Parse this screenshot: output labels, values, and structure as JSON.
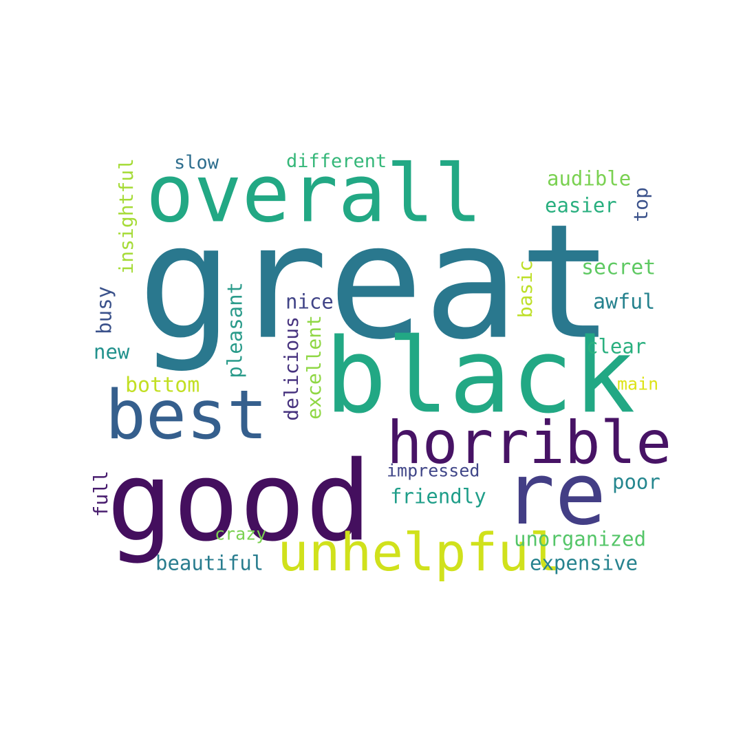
{
  "words": [
    {
      "text": "great",
      "color": "#2a788e"
    },
    {
      "text": "overall",
      "color": "#22a884"
    },
    {
      "text": "black",
      "color": "#22a884"
    },
    {
      "text": "good",
      "color": "#440f5e"
    },
    {
      "text": "best",
      "color": "#355f8d"
    },
    {
      "text": "horrible",
      "color": "#471365"
    },
    {
      "text": "re",
      "color": "#433e85"
    },
    {
      "text": "unhelpful",
      "color": "#d0e11c"
    },
    {
      "text": "slow",
      "color": "#2e6e8e"
    },
    {
      "text": "different",
      "color": "#35b779"
    },
    {
      "text": "audible",
      "color": "#7ad151"
    },
    {
      "text": "easier",
      "color": "#29af7f"
    },
    {
      "text": "top",
      "color": "#3b528b"
    },
    {
      "text": "insightful",
      "color": "#a5db36"
    },
    {
      "text": "busy",
      "color": "#3b528b"
    },
    {
      "text": "new",
      "color": "#21918c"
    },
    {
      "text": "pleasant",
      "color": "#2a9b8a"
    },
    {
      "text": "nice",
      "color": "#414487"
    },
    {
      "text": "delicious",
      "color": "#46327e"
    },
    {
      "text": "excellent",
      "color": "#8fd744"
    },
    {
      "text": "basic",
      "color": "#bddf26"
    },
    {
      "text": "secret",
      "color": "#5ec962"
    },
    {
      "text": "awful",
      "color": "#26828e"
    },
    {
      "text": "clear",
      "color": "#2ab07f"
    },
    {
      "text": "main",
      "color": "#dde318"
    },
    {
      "text": "bottom",
      "color": "#c2df23"
    },
    {
      "text": "impressed",
      "color": "#404688"
    },
    {
      "text": "poor",
      "color": "#24868e"
    },
    {
      "text": "friendly",
      "color": "#1f9e89"
    },
    {
      "text": "full",
      "color": "#481c6e"
    },
    {
      "text": "crazy",
      "color": "#7ad151"
    },
    {
      "text": "unorganized",
      "color": "#54c568"
    },
    {
      "text": "beautiful",
      "color": "#287c8e"
    },
    {
      "text": "expensive",
      "color": "#26828e"
    }
  ]
}
